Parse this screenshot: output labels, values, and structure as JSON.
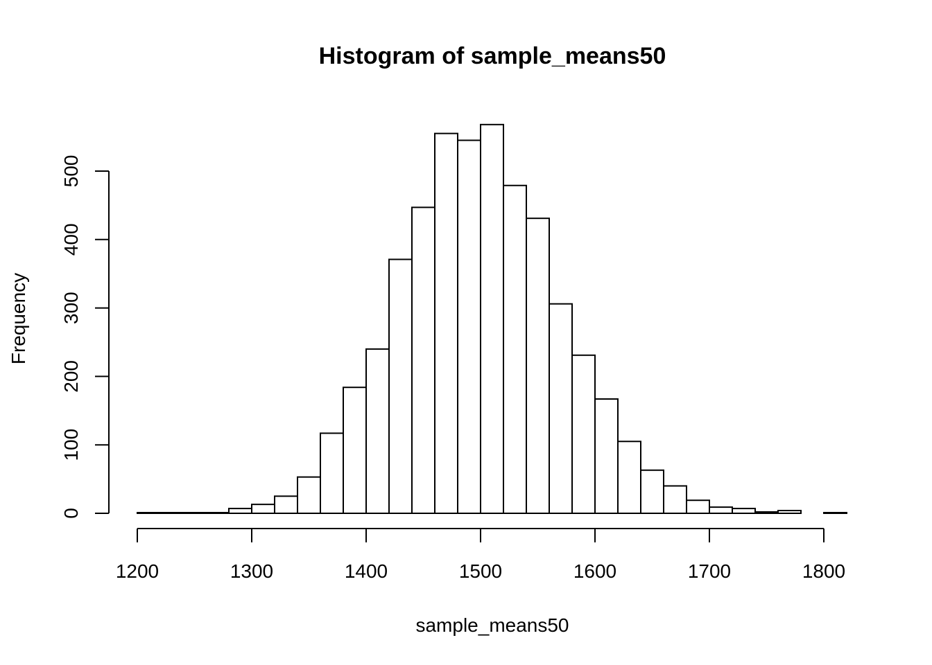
{
  "chart_data": {
    "type": "bar",
    "title": "Histogram of sample_means50",
    "xlabel": "sample_means50",
    "ylabel": "Frequency",
    "xlim": [
      1200,
      1820
    ],
    "ylim": [
      0,
      570
    ],
    "xticks": [
      1200,
      1300,
      1400,
      1500,
      1600,
      1700,
      1800
    ],
    "yticks": [
      0,
      100,
      200,
      300,
      400,
      500
    ],
    "bin_width": 20,
    "bins": [
      {
        "start": 1200,
        "end": 1220,
        "count": 1
      },
      {
        "start": 1220,
        "end": 1240,
        "count": 1
      },
      {
        "start": 1240,
        "end": 1260,
        "count": 1
      },
      {
        "start": 1260,
        "end": 1280,
        "count": 1
      },
      {
        "start": 1280,
        "end": 1300,
        "count": 7
      },
      {
        "start": 1300,
        "end": 1320,
        "count": 13
      },
      {
        "start": 1320,
        "end": 1340,
        "count": 25
      },
      {
        "start": 1340,
        "end": 1360,
        "count": 53
      },
      {
        "start": 1360,
        "end": 1380,
        "count": 117
      },
      {
        "start": 1380,
        "end": 1400,
        "count": 184
      },
      {
        "start": 1400,
        "end": 1420,
        "count": 240
      },
      {
        "start": 1420,
        "end": 1440,
        "count": 371
      },
      {
        "start": 1440,
        "end": 1460,
        "count": 447
      },
      {
        "start": 1460,
        "end": 1480,
        "count": 555
      },
      {
        "start": 1480,
        "end": 1500,
        "count": 545
      },
      {
        "start": 1500,
        "end": 1520,
        "count": 568
      },
      {
        "start": 1520,
        "end": 1540,
        "count": 479
      },
      {
        "start": 1540,
        "end": 1560,
        "count": 431
      },
      {
        "start": 1560,
        "end": 1580,
        "count": 306
      },
      {
        "start": 1580,
        "end": 1600,
        "count": 231
      },
      {
        "start": 1600,
        "end": 1620,
        "count": 167
      },
      {
        "start": 1620,
        "end": 1640,
        "count": 105
      },
      {
        "start": 1640,
        "end": 1660,
        "count": 63
      },
      {
        "start": 1660,
        "end": 1680,
        "count": 40
      },
      {
        "start": 1680,
        "end": 1700,
        "count": 19
      },
      {
        "start": 1700,
        "end": 1720,
        "count": 9
      },
      {
        "start": 1720,
        "end": 1740,
        "count": 7
      },
      {
        "start": 1740,
        "end": 1760,
        "count": 2
      },
      {
        "start": 1760,
        "end": 1780,
        "count": 4
      },
      {
        "start": 1780,
        "end": 1800,
        "count": 0
      },
      {
        "start": 1800,
        "end": 1820,
        "count": 1
      }
    ],
    "grid": false,
    "legend": "none"
  }
}
